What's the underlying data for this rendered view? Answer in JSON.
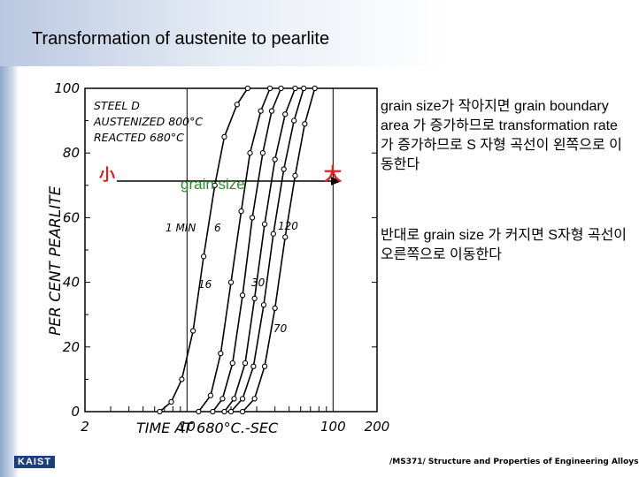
{
  "title": "Transformation of austenite to pearlite",
  "chart_data": {
    "type": "line",
    "xscale": "log",
    "xlim": [
      2,
      200
    ],
    "ylim": [
      0,
      100
    ],
    "xticks": [
      "2",
      "10",
      "100",
      "200"
    ],
    "yticks": [
      "0",
      "20",
      "40",
      "60",
      "80",
      "100"
    ],
    "xlabel": "TIME AT 680°C.-SEC",
    "ylabel": "PER CENT PEARLITE",
    "legend_lines": [
      "STEEL D",
      "AUSTENIZED 800°C",
      "REACTED 680°C"
    ],
    "series": [
      {
        "name": "1 MIN",
        "x": [
          6.5,
          7.8,
          9.2,
          11,
          13,
          15.5,
          18,
          22,
          26
        ],
        "y": [
          0,
          3,
          10,
          25,
          48,
          70,
          85,
          95,
          100
        ]
      },
      {
        "name": "6",
        "x": [
          12,
          14.5,
          17,
          20,
          23.5,
          27,
          32,
          37
        ],
        "y": [
          0,
          5,
          18,
          40,
          62,
          80,
          93,
          100
        ]
      },
      {
        "name": "16",
        "x": [
          15,
          17.5,
          20.5,
          24,
          28,
          33,
          38,
          44
        ],
        "y": [
          0,
          4,
          15,
          36,
          60,
          80,
          93,
          100
        ]
      },
      {
        "name": "30",
        "x": [
          18,
          21,
          25,
          29,
          34,
          40,
          47,
          55
        ],
        "y": [
          0,
          4,
          15,
          35,
          58,
          78,
          92,
          100
        ]
      },
      {
        "name": "70",
        "x": [
          20,
          24,
          28.5,
          33.5,
          39,
          46,
          54,
          63
        ],
        "y": [
          0,
          4,
          14,
          33,
          55,
          75,
          90,
          100
        ]
      },
      {
        "name": "120",
        "x": [
          24,
          29,
          34,
          40,
          47,
          55,
          64,
          75
        ],
        "y": [
          0,
          4,
          14,
          32,
          54,
          73,
          89,
          100
        ]
      }
    ],
    "annotations": {
      "small": "小",
      "large": "大",
      "arrow_label": "grain size"
    }
  },
  "notes": {
    "first": "grain size가 작아지면 grain boundary area 가 증가하므로 transformation rate 가 증가하므로 S 자형 곡선이 왼쪽으로 이동한다",
    "second": "반대로 grain size 가 커지면 S자형 곡선이 오른쪽으로 이동한다"
  },
  "footer": "/MS371/ Structure and Properties of Engineering Alloys",
  "logo": "KAIST",
  "colors": {
    "annotation_red": "#e0201b",
    "annotation_green": "#2d8a2d",
    "ink": "#000000"
  }
}
